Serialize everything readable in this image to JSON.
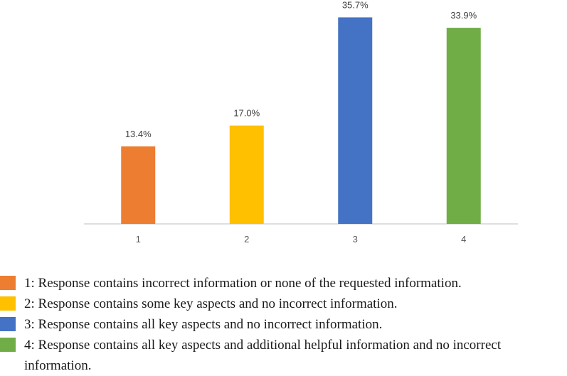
{
  "chart_data": {
    "type": "bar",
    "categories": [
      "1",
      "2",
      "3",
      "4"
    ],
    "values": [
      13.4,
      17.0,
      35.7,
      33.9
    ],
    "data_labels": [
      "13.4%",
      "17.0%",
      "35.7%",
      "33.9%"
    ],
    "colors": [
      "#ED7D31",
      "#FFC000",
      "#4472C4",
      "#70AD47"
    ],
    "ylim": [
      0,
      36
    ],
    "grid": false,
    "legend_position": "bottom"
  },
  "legend": {
    "items": [
      {
        "color": "#ED7D31",
        "text": "1: Response contains incorrect information or none of the requested information."
      },
      {
        "color": "#FFC000",
        "text": "2: Response contains some key aspects and no incorrect information."
      },
      {
        "color": "#4472C4",
        "text": "3: Response contains all key aspects and no incorrect information."
      },
      {
        "color": "#70AD47",
        "text": "4: Response contains all key aspects and additional helpful information and no incorrect information."
      }
    ]
  }
}
